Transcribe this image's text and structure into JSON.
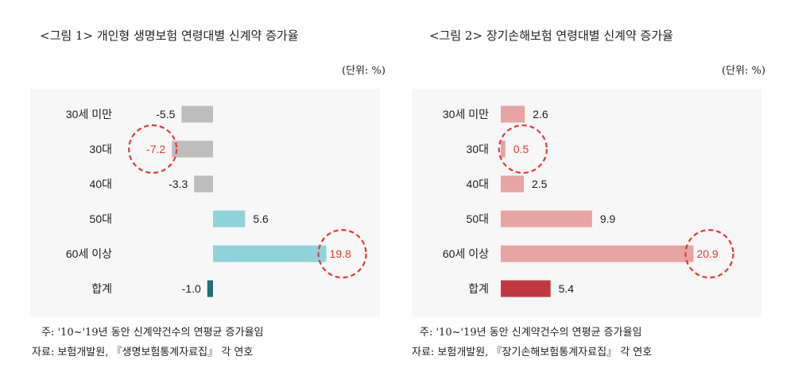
{
  "chart_data": [
    {
      "type": "bar",
      "title": "<그림 1> 개인형 생명보험 연령대별 신계약 증가율",
      "unit": "(단위: %)",
      "categories": [
        "30세 미만",
        "30대",
        "40대",
        "50대",
        "60세 이상",
        "합계"
      ],
      "values": [
        -5.5,
        -7.2,
        -3.3,
        5.6,
        19.8,
        -1.0
      ],
      "value_labels": [
        "-5.5",
        "-7.2",
        "-3.3",
        "5.6",
        "19.8",
        "-1.0"
      ],
      "highlighted": [
        "30대",
        "60세 이상"
      ],
      "note": "주: '10~'19년 동안 신계약건수의 연평균 증가율임",
      "source": "자료: 보험개발원, 『생명보험통계자료집』 각 연호"
    },
    {
      "type": "bar",
      "title": "<그림 2> 장기손해보험 연령대별 신계약 증가율",
      "unit": "(단위: %)",
      "categories": [
        "30세 미만",
        "30대",
        "40대",
        "50대",
        "60세 이상",
        "합계"
      ],
      "values": [
        2.6,
        0.5,
        2.5,
        9.9,
        20.9,
        5.4
      ],
      "value_labels": [
        "2.6",
        "0.5",
        "2.5",
        "9.9",
        "20.9",
        "5.4"
      ],
      "highlighted": [
        "30대",
        "60세 이상"
      ],
      "note": "주: '10~'19년 동안 신계약건수의 연평균 증가율임",
      "source": "자료: 보험개발원, 『장기손해보험통계자료집』 각 연호"
    }
  ],
  "colors": {
    "negative_bar": "#bdbdbd",
    "positive_bar_left": "#8fd3db",
    "total_bar_left": "#1f6f7a",
    "bar_right": "#e8a3a3",
    "total_bar_right": "#c0393f",
    "highlight": "#e53935"
  }
}
